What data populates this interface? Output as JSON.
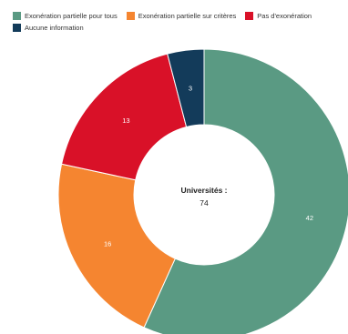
{
  "chart_data": {
    "type": "pie",
    "variant": "donut",
    "center": {
      "label": "Universités :",
      "value": "74"
    },
    "legend_position": "top",
    "series": [
      {
        "name": "Exonération partielle pour tous",
        "value": 42,
        "color": "#5a9a83"
      },
      {
        "name": "Exonération partielle sur critères",
        "value": 16,
        "color": "#f58530"
      },
      {
        "name": "Pas d'exonération",
        "value": 13,
        "color": "#d91128"
      },
      {
        "name": "Aucune information",
        "value": 3,
        "color": "#133b5a"
      }
    ]
  }
}
